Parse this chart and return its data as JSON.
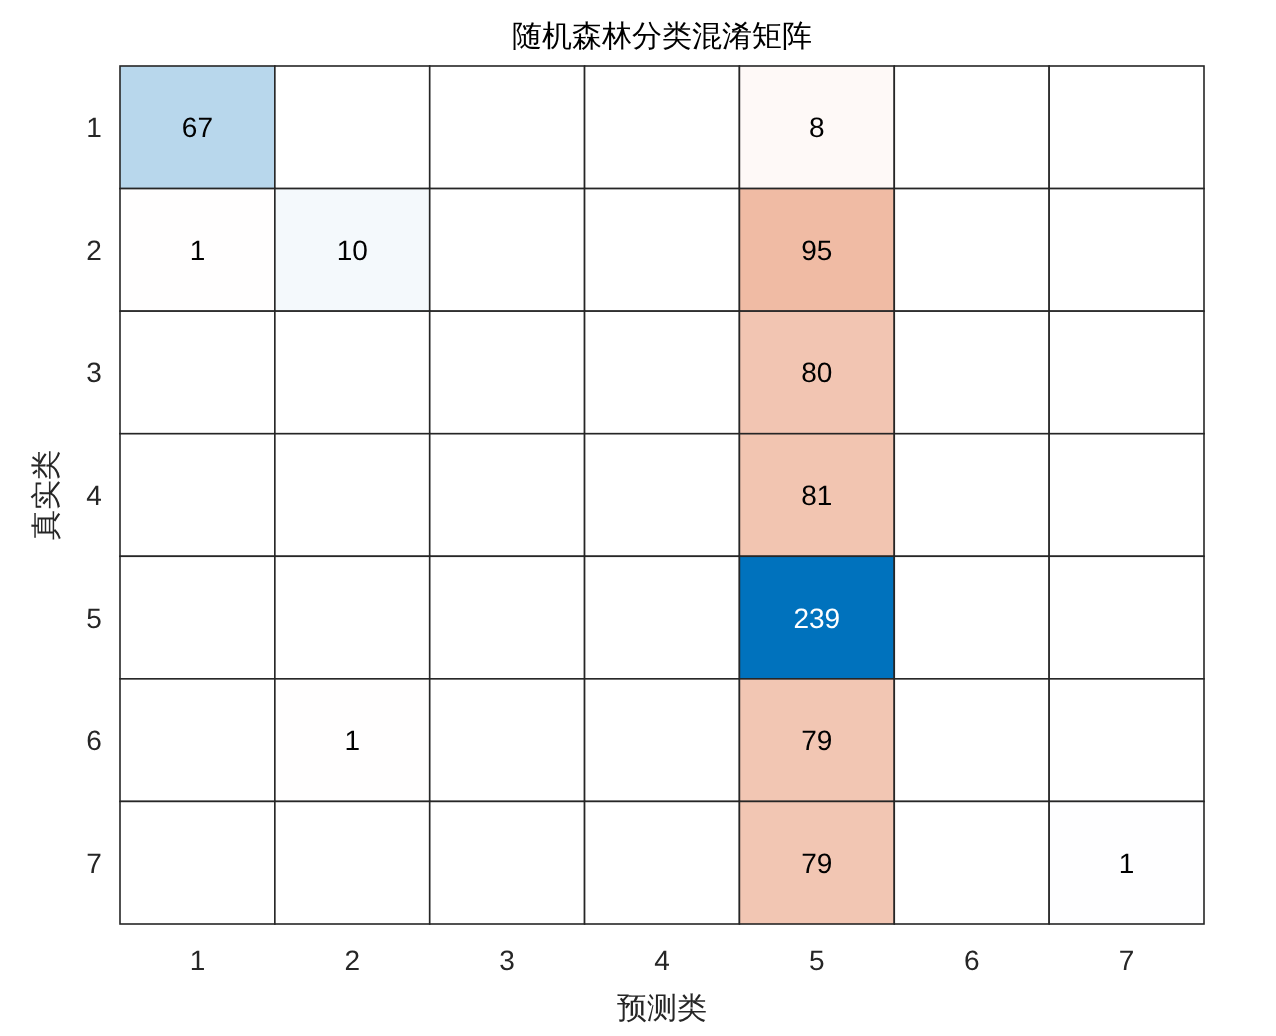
{
  "chart_data": {
    "type": "heatmap",
    "title": "随机森林分类混淆矩阵",
    "xlabel": "预测类",
    "ylabel": "真实类",
    "categories": [
      "1",
      "2",
      "3",
      "4",
      "5",
      "6",
      "7"
    ],
    "y_categories": [
      "1",
      "2",
      "3",
      "4",
      "5",
      "6",
      "7"
    ],
    "cells": [
      [
        67,
        null,
        null,
        null,
        8,
        null,
        null
      ],
      [
        1,
        10,
        null,
        null,
        95,
        null,
        null
      ],
      [
        null,
        null,
        null,
        null,
        80,
        null,
        null
      ],
      [
        null,
        null,
        null,
        null,
        81,
        null,
        null
      ],
      [
        null,
        null,
        null,
        null,
        239,
        null,
        null
      ],
      [
        null,
        1,
        null,
        null,
        79,
        null,
        null
      ],
      [
        null,
        null,
        null,
        null,
        79,
        null,
        1
      ]
    ],
    "data_labels": true
  }
}
